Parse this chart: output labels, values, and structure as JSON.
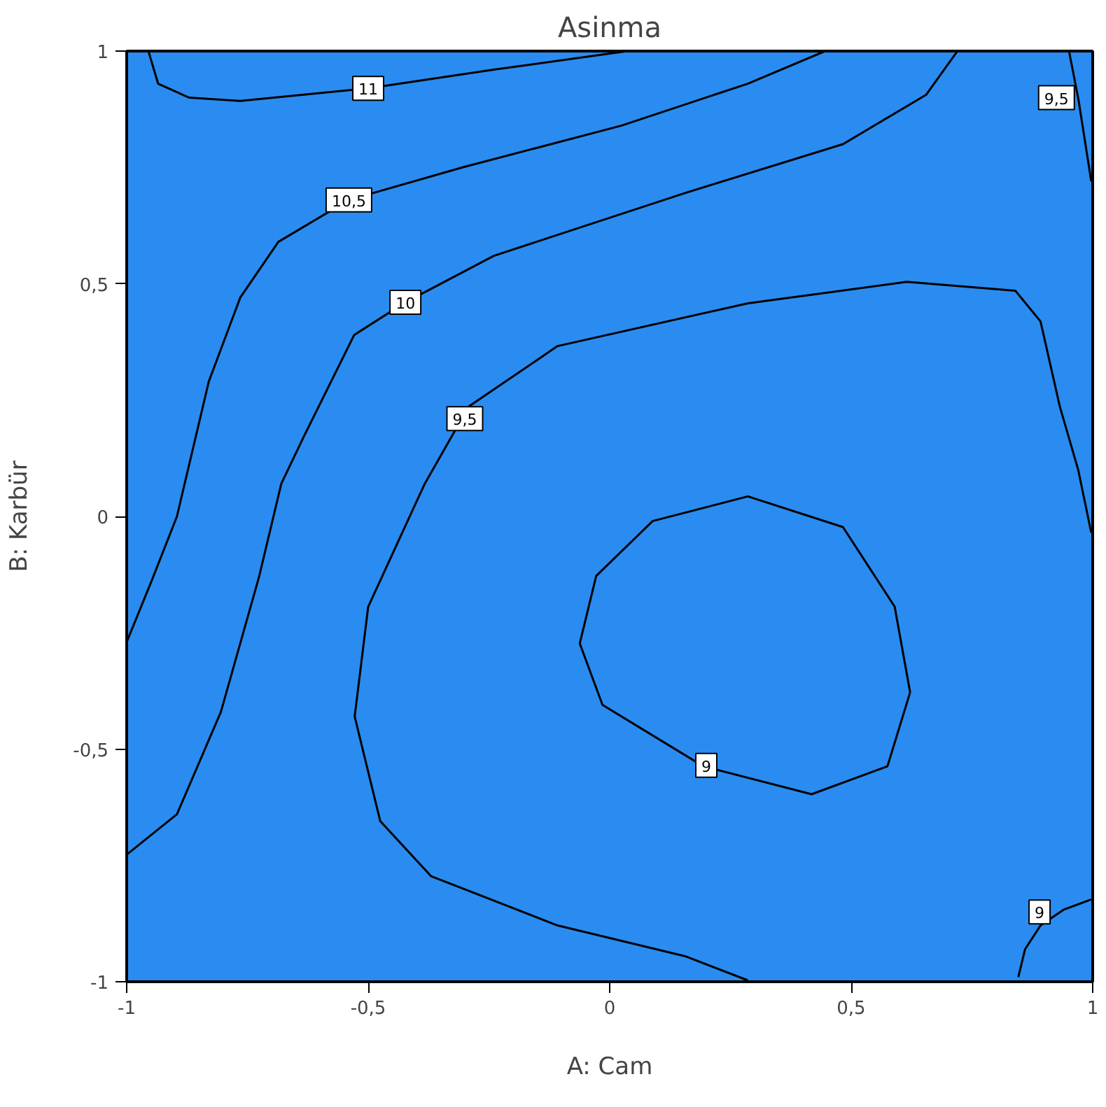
{
  "chart_data": {
    "type": "line",
    "title": "Asinma",
    "xlabel": "A: Cam",
    "ylabel": "B: Karbür",
    "xlim": [
      -1,
      1
    ],
    "ylim": [
      -1,
      1
    ],
    "xticks": [
      {
        "value": -1,
        "label": "-1"
      },
      {
        "value": -0.5,
        "label": "-0,5"
      },
      0,
      {
        "value": 0.5,
        "label": "0,5"
      },
      1
    ],
    "yticks": [
      {
        "value": -1,
        "label": "-1"
      },
      {
        "value": -0.5,
        "label": "-0,5"
      },
      0,
      {
        "value": 0.5,
        "label": "0,5"
      },
      1
    ],
    "grid": false,
    "marker": "none",
    "line_style": "solid",
    "series": [
      {
        "color": "#000000",
        "x": [
          -0.955,
          -0.935,
          -0.871,
          -0.765,
          -0.5,
          -0.24,
          0.037
        ],
        "values": [
          1.0,
          0.93,
          0.9,
          0.893,
          0.92,
          0.96,
          1.0
        ]
      },
      {
        "color": "#000000",
        "x": [
          -1.0,
          -0.949,
          -0.896,
          -0.83,
          -0.765,
          -0.686,
          -0.54,
          -0.305,
          0.025,
          0.286,
          0.446
        ],
        "values": [
          -0.27,
          -0.14,
          0.0,
          0.29,
          0.47,
          0.59,
          0.68,
          0.75,
          0.84,
          0.93,
          1.0
        ]
      },
      {
        "color": "#000000",
        "x": [
          -1.0,
          -0.896,
          -0.805,
          -0.726,
          -0.68,
          -0.634,
          -0.529,
          -0.423,
          -0.24,
          0.156,
          0.483,
          0.655,
          0.72
        ],
        "values": [
          -0.727,
          -0.64,
          -0.42,
          -0.13,
          0.07,
          0.17,
          0.39,
          0.46,
          0.56,
          0.695,
          0.8,
          0.906,
          1.0
        ]
      },
      {
        "color": "#000000",
        "x": [
          0.286,
          0.156,
          -0.108,
          -0.37,
          -0.475,
          -0.528,
          -0.5,
          -0.383,
          -0.292,
          -0.108,
          0.286,
          0.615,
          0.84,
          0.892,
          0.932,
          0.97,
          0.997
        ],
        "values": [
          -0.997,
          -0.945,
          -0.879,
          -0.773,
          -0.655,
          -0.43,
          -0.194,
          0.07,
          0.236,
          0.366,
          0.458,
          0.504,
          0.485,
          0.419,
          0.236,
          0.1,
          -0.035
        ]
      },
      {
        "color": "#000000",
        "x": [
          0.951,
          0.971,
          0.997
        ],
        "values": [
          1.0,
          0.893,
          0.72
        ]
      },
      {
        "color": "#000000",
        "x": [
          -0.062,
          -0.028,
          0.089,
          0.286,
          0.483,
          0.59,
          0.622
        ],
        "values": [
          -0.273,
          -0.128,
          -0.01,
          0.043,
          -0.023,
          -0.194,
          -0.378
        ]
      },
      {
        "color": "#000000",
        "x": [
          -0.062,
          -0.015,
          0.194,
          0.418,
          0.575,
          0.622
        ],
        "values": [
          -0.273,
          -0.405,
          -0.537,
          -0.597,
          -0.537,
          -0.378
        ]
      },
      {
        "color": "#000000",
        "x": [
          0.846,
          0.86,
          0.892,
          0.94,
          0.997
        ],
        "values": [
          -0.99,
          -0.93,
          -0.879,
          -0.845,
          -0.823
        ]
      }
    ],
    "annotations": [
      {
        "text": "11",
        "x": -0.5,
        "y": 0.92
      },
      {
        "text": "10,5",
        "x": -0.54,
        "y": 0.68
      },
      {
        "text": "10",
        "x": -0.423,
        "y": 0.46
      },
      {
        "text": "9,5",
        "x": -0.3,
        "y": 0.21
      },
      {
        "text": "9,5",
        "x": 0.925,
        "y": 0.9
      },
      {
        "text": "9",
        "x": 0.2,
        "y": -0.535
      },
      {
        "text": "9",
        "x": 0.89,
        "y": -0.85
      }
    ]
  }
}
